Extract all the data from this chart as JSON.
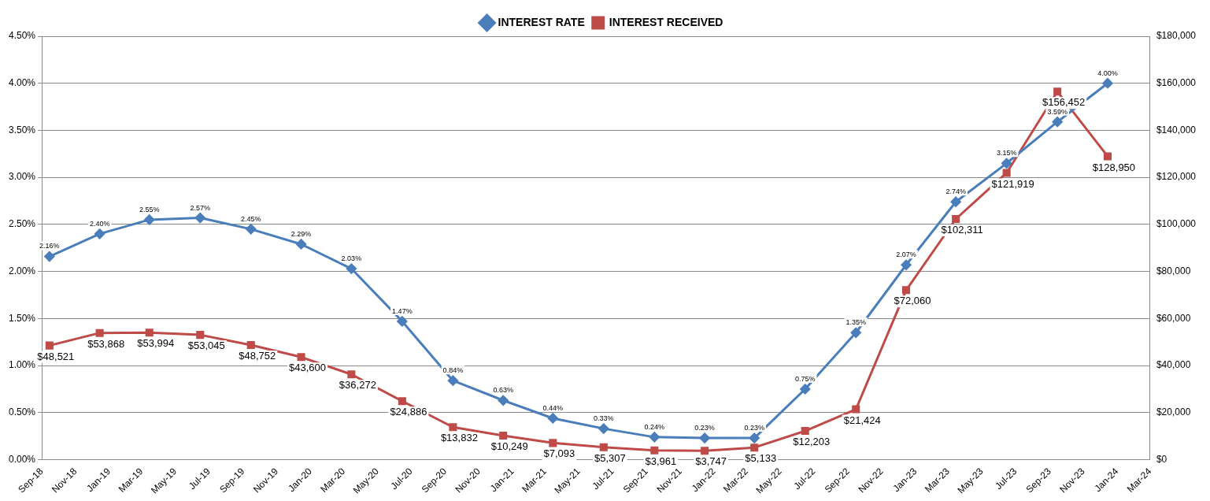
{
  "chart_data": {
    "type": "line",
    "x": [
      "2018-09-15",
      "2018-12-15",
      "2019-03-15",
      "2019-06-15",
      "2019-09-15",
      "2019-12-15",
      "2020-03-15",
      "2020-06-15",
      "2020-09-15",
      "2020-12-15",
      "2021-03-15",
      "2021-06-15",
      "2021-09-15",
      "2021-12-15",
      "2022-03-15",
      "2022-06-15",
      "2022-09-15",
      "2022-12-15",
      "2023-03-15",
      "2023-06-15",
      "2023-09-15",
      "2023-12-15"
    ],
    "series": [
      {
        "name": "INTEREST RATE",
        "color": "#4a7ebb",
        "marker": "diamond",
        "axis": "y",
        "values": [
          2.16,
          2.4,
          2.55,
          2.57,
          2.45,
          2.29,
          2.03,
          1.47,
          0.84,
          0.63,
          0.44,
          0.33,
          0.24,
          0.23,
          0.23,
          0.75,
          1.35,
          2.07,
          2.74,
          3.15,
          3.59,
          4.0
        ],
        "value_labels": [
          "2.16%",
          "2.40%",
          "2.55%",
          "2.57%",
          "2.45%",
          "2.29%",
          "2.03%",
          "1.47%",
          "0.84%",
          "0.63%",
          "0.44%",
          "0.33%",
          "0.24%",
          "0.23%",
          "0.23%",
          "0.75%",
          "1.35%",
          "2.07%",
          "2.74%",
          "3.15%",
          "3.59%",
          "4.00%"
        ]
      },
      {
        "name": "INTEREST RECEIVED",
        "color": "#be4b48",
        "marker": "square",
        "axis": "y2",
        "values": [
          48521,
          53868,
          53994,
          53045,
          48752,
          43600,
          36272,
          24886,
          13832,
          10249,
          7093,
          5307,
          3961,
          3747,
          5133,
          12203,
          21424,
          72060,
          102311,
          121919,
          156452,
          128950
        ],
        "value_labels": [
          "$48,521",
          "$53,868",
          "$53,994",
          "$53,045",
          "$48,752",
          "$43,600",
          "$36,272",
          "$24,886",
          "$13,832",
          "$10,249",
          "$7,093",
          "$5,307",
          "$3,961",
          "$3,747",
          "$5,133",
          "$12,203",
          "$21,424",
          "$72,060",
          "$102,311",
          "$121,919",
          "$156,452",
          "$128,950"
        ]
      }
    ],
    "xlim": [
      "2018-09-01",
      "2024-03-01"
    ],
    "xticks": [
      {
        "value": "2018-09-01",
        "label": "Sep-18"
      },
      {
        "value": "2018-11-01",
        "label": "Nov-18"
      },
      {
        "value": "2019-01-01",
        "label": "Jan-19"
      },
      {
        "value": "2019-03-01",
        "label": "Mar-19"
      },
      {
        "value": "2019-05-01",
        "label": "May-19"
      },
      {
        "value": "2019-07-01",
        "label": "Jul-19"
      },
      {
        "value": "2019-09-01",
        "label": "Sep-19"
      },
      {
        "value": "2019-11-01",
        "label": "Nov-19"
      },
      {
        "value": "2020-01-01",
        "label": "Jan-20"
      },
      {
        "value": "2020-03-01",
        "label": "Mar-20"
      },
      {
        "value": "2020-05-01",
        "label": "May-20"
      },
      {
        "value": "2020-07-01",
        "label": "Jul-20"
      },
      {
        "value": "2020-09-01",
        "label": "Sep-20"
      },
      {
        "value": "2020-11-01",
        "label": "Nov-20"
      },
      {
        "value": "2021-01-01",
        "label": "Jan-21"
      },
      {
        "value": "2021-03-01",
        "label": "Mar-21"
      },
      {
        "value": "2021-05-01",
        "label": "May-21"
      },
      {
        "value": "2021-07-01",
        "label": "Jul-21"
      },
      {
        "value": "2021-09-01",
        "label": "Sep-21"
      },
      {
        "value": "2021-11-01",
        "label": "Nov-21"
      },
      {
        "value": "2022-01-01",
        "label": "Jan-22"
      },
      {
        "value": "2022-03-01",
        "label": "Mar-22"
      },
      {
        "value": "2022-05-01",
        "label": "May-22"
      },
      {
        "value": "2022-07-01",
        "label": "Jul-22"
      },
      {
        "value": "2022-09-01",
        "label": "Sep-22"
      },
      {
        "value": "2022-11-01",
        "label": "Nov-22"
      },
      {
        "value": "2023-01-01",
        "label": "Jan-23"
      },
      {
        "value": "2023-03-01",
        "label": "Mar-23"
      },
      {
        "value": "2023-05-01",
        "label": "May-23"
      },
      {
        "value": "2023-07-01",
        "label": "Jul-23"
      },
      {
        "value": "2023-09-01",
        "label": "Sep-23"
      },
      {
        "value": "2023-11-01",
        "label": "Nov-23"
      },
      {
        "value": "2024-01-01",
        "label": "Jan-24"
      },
      {
        "value": "2024-03-01",
        "label": "Mar-24"
      }
    ],
    "ylim": [
      0,
      4.5
    ],
    "yticks": [
      {
        "value": 0,
        "label": "0.00%"
      },
      {
        "value": 0.5,
        "label": "0.50%"
      },
      {
        "value": 1,
        "label": "1.00%"
      },
      {
        "value": 1.5,
        "label": "1.50%"
      },
      {
        "value": 2,
        "label": "2.00%"
      },
      {
        "value": 2.5,
        "label": "2.50%"
      },
      {
        "value": 3,
        "label": "3.00%"
      },
      {
        "value": 3.5,
        "label": "3.50%"
      },
      {
        "value": 4,
        "label": "4.00%"
      },
      {
        "value": 4.5,
        "label": "4.50%"
      }
    ],
    "y2lim": [
      0,
      180000
    ],
    "y2ticks": [
      {
        "value": 0,
        "label": "$0"
      },
      {
        "value": 20000,
        "label": "$20,000"
      },
      {
        "value": 40000,
        "label": "$40,000"
      },
      {
        "value": 60000,
        "label": "$60,000"
      },
      {
        "value": 80000,
        "label": "$80,000"
      },
      {
        "value": 100000,
        "label": "$100,000"
      },
      {
        "value": 120000,
        "label": "$120,000"
      },
      {
        "value": 140000,
        "label": "$140,000"
      },
      {
        "value": 160000,
        "label": "$160,000"
      },
      {
        "value": 180000,
        "label": "$180,000"
      }
    ],
    "grid": "y",
    "legend": "top",
    "line_style": "solid"
  }
}
